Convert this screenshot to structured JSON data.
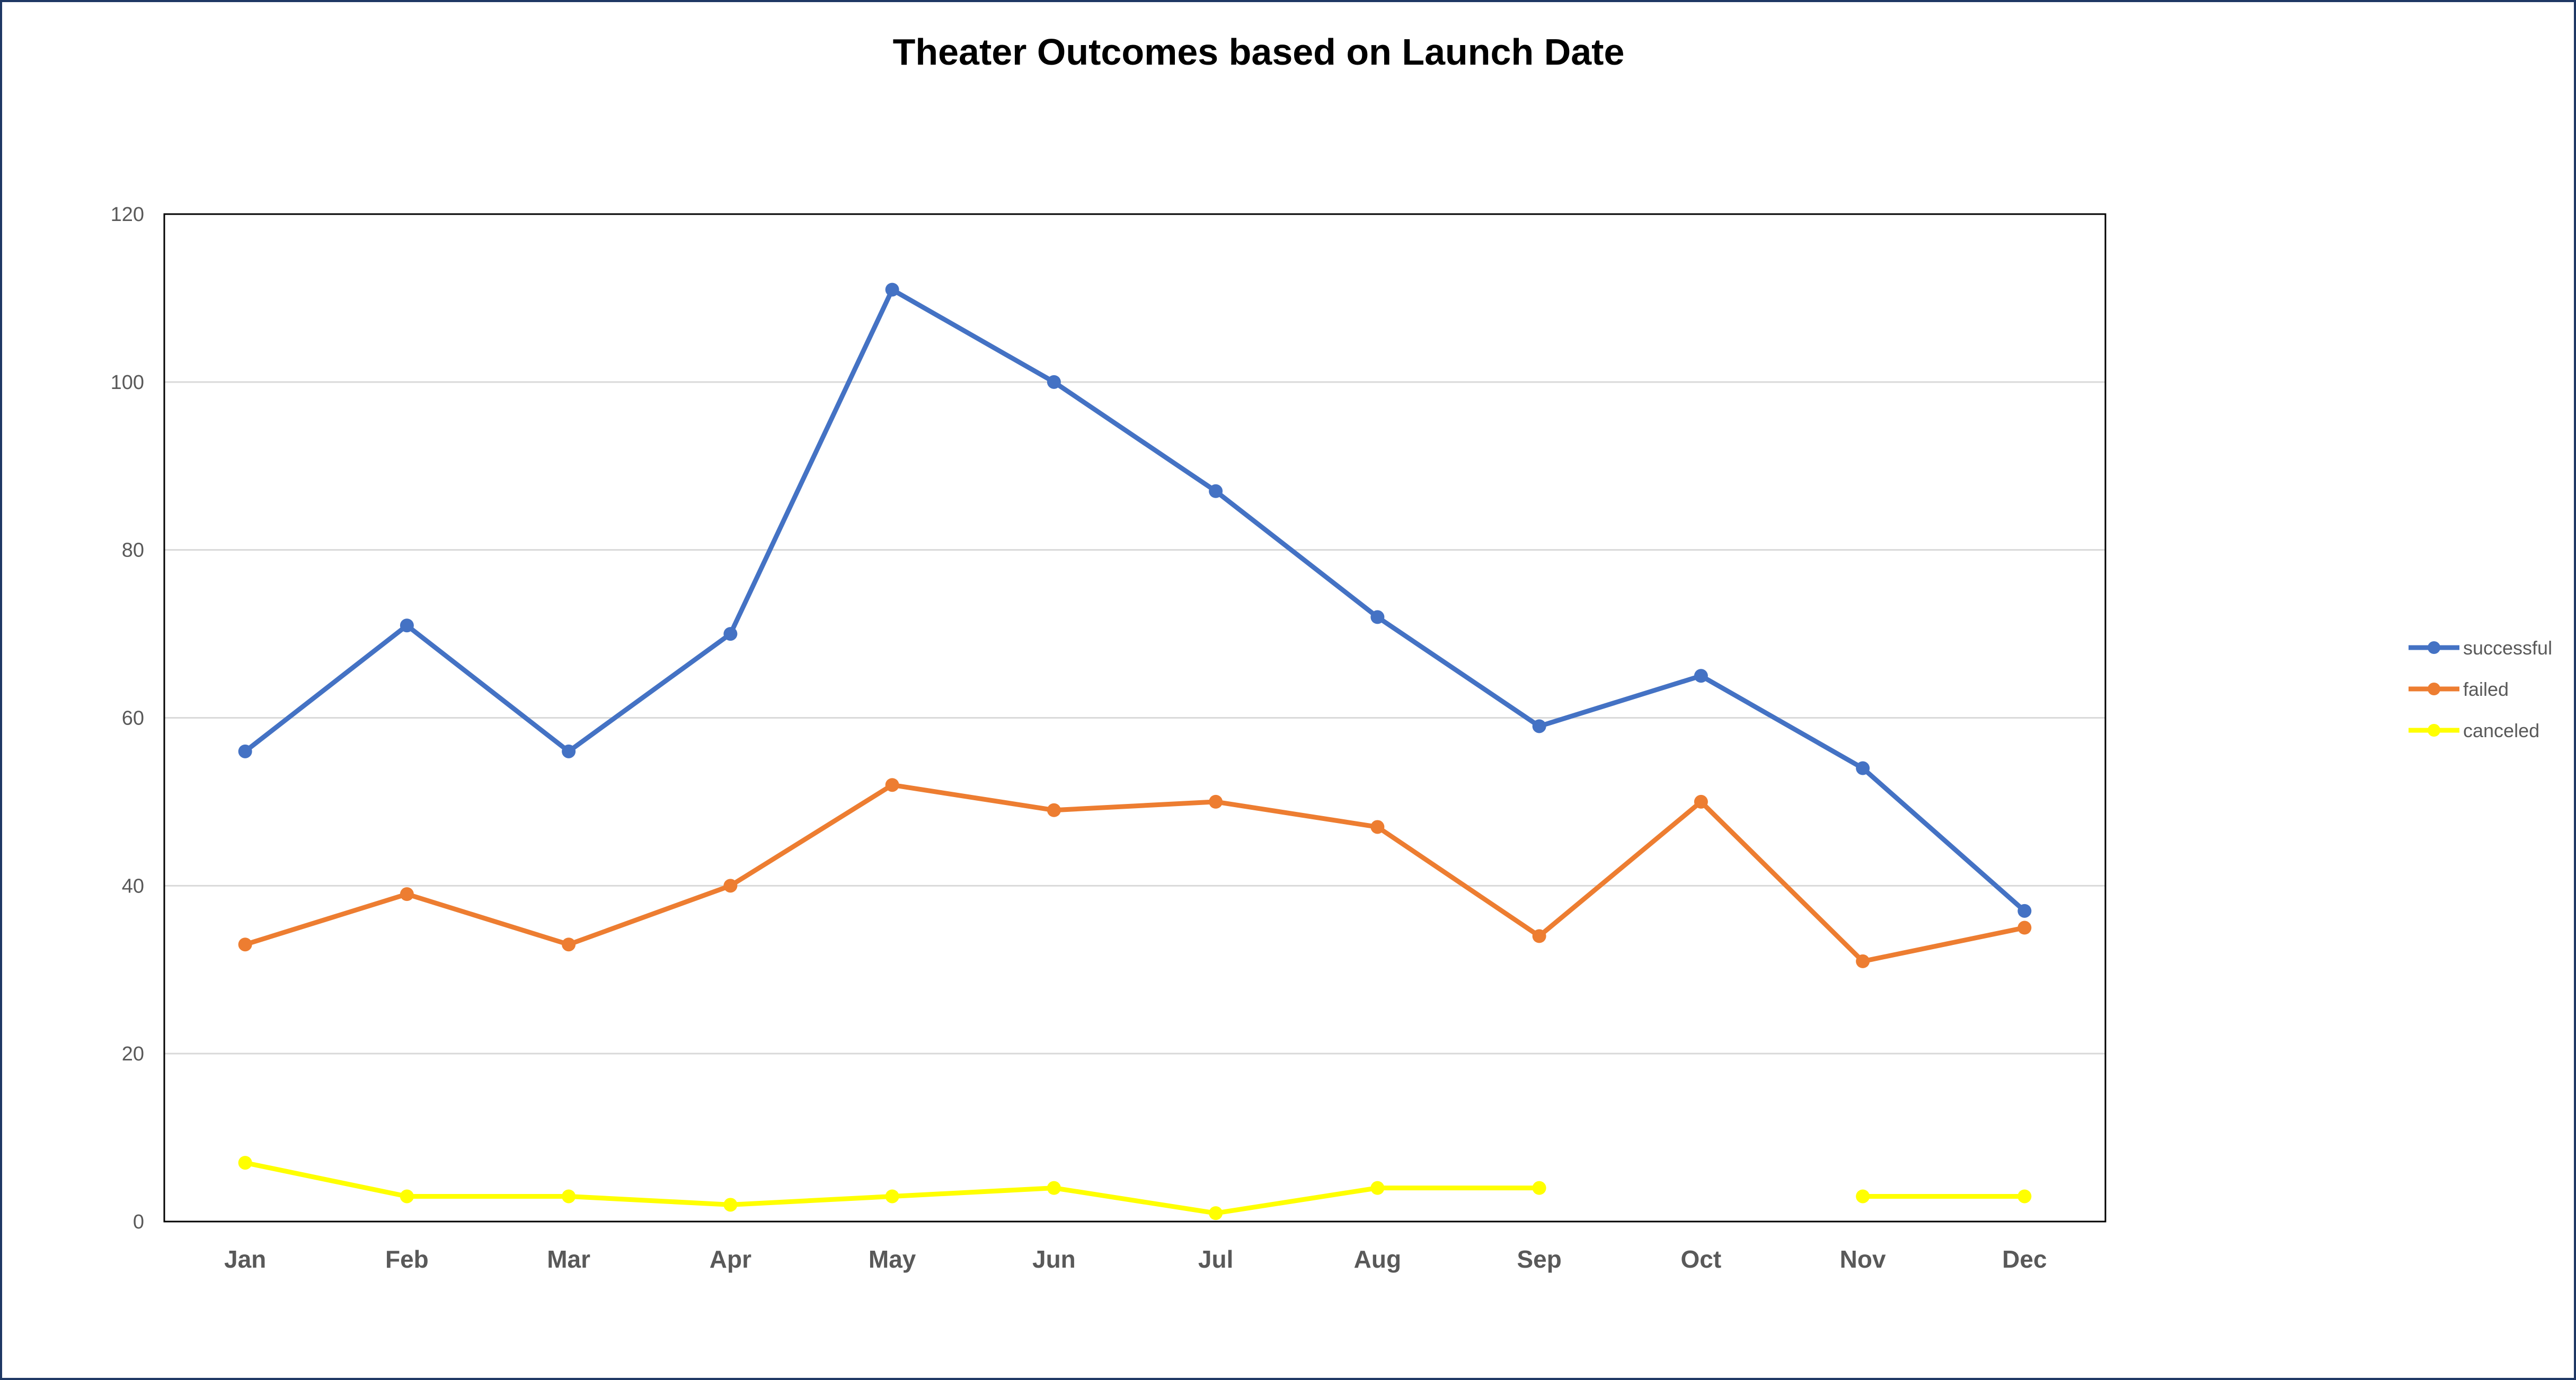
{
  "chart_data": {
    "type": "line",
    "title": "Theater  Outcomes based on Launch Date",
    "xlabel": "",
    "ylabel": "",
    "categories": [
      "Jan",
      "Feb",
      "Mar",
      "Apr",
      "May",
      "Jun",
      "Jul",
      "Aug",
      "Sep",
      "Oct",
      "Nov",
      "Dec"
    ],
    "ylim": [
      0,
      120
    ],
    "yticks": [
      0,
      20,
      40,
      60,
      80,
      100,
      120
    ],
    "grid": true,
    "legend_position": "right",
    "series": [
      {
        "name": "successful",
        "color": "#4472c4",
        "values": [
          56,
          71,
          56,
          70,
          111,
          100,
          87,
          72,
          59,
          65,
          54,
          37
        ]
      },
      {
        "name": "failed",
        "color": "#ed7d31",
        "values": [
          33,
          39,
          33,
          40,
          52,
          49,
          50,
          47,
          34,
          50,
          31,
          35
        ]
      },
      {
        "name": "canceled",
        "color": "#ffff00",
        "values": [
          7,
          3,
          3,
          2,
          3,
          4,
          1,
          4,
          4,
          null,
          3,
          3
        ]
      }
    ]
  }
}
